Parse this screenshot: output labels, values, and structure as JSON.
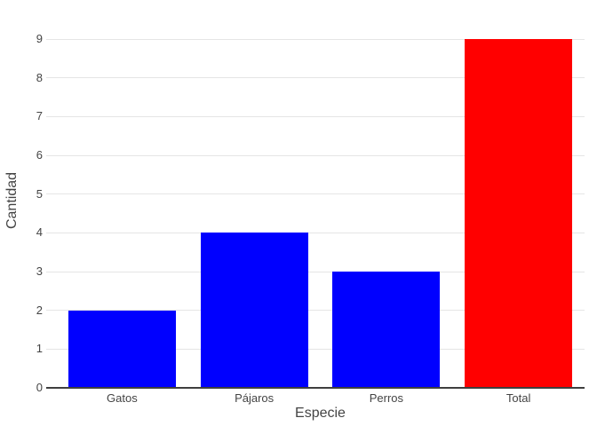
{
  "chart_data": {
    "type": "bar",
    "categories": [
      "Gatos",
      "Pájaros",
      "Perros",
      "Total"
    ],
    "values": [
      2,
      4,
      3,
      9
    ],
    "bar_colors": [
      "#0000ff",
      "#0000ff",
      "#0000ff",
      "#ff0000"
    ],
    "title": "",
    "xlabel": "Especie",
    "ylabel": "Cantidad",
    "ylim": [
      0,
      9
    ],
    "yticks": [
      0,
      1,
      2,
      3,
      4,
      5,
      6,
      7,
      8,
      9
    ],
    "grid": "horizontal-only",
    "legend": "none"
  },
  "colors": {
    "background": "#ffffff",
    "gridline": "#e5e5e5",
    "axis_line": "#3f3f3f",
    "text": "#444444",
    "bar_blue": "#0000ff",
    "bar_red": "#ff0000"
  }
}
